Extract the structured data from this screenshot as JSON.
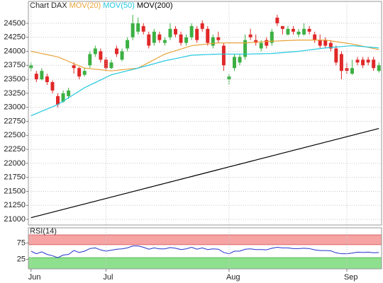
{
  "chart_data": [
    {
      "type": "candlestick",
      "title": "Chart DAX",
      "categories": [
        "Jun",
        null,
        null,
        null,
        null,
        null,
        null,
        null,
        null,
        null,
        null,
        null,
        null,
        null,
        "Jul",
        null,
        null,
        null,
        null,
        null,
        null,
        null,
        null,
        null,
        null,
        null,
        null,
        null,
        null,
        null,
        null,
        null,
        null,
        null,
        null,
        null,
        null,
        "Aug",
        null,
        null,
        null,
        null,
        null,
        null,
        null,
        null,
        null,
        null,
        null,
        null,
        null,
        null,
        null,
        null,
        null,
        null,
        null,
        null,
        null,
        "Sep",
        null,
        null,
        null,
        null,
        null,
        null
      ],
      "open": [
        23700,
        23600,
        23500,
        23550,
        23450,
        23200,
        23100,
        23200,
        23750,
        23700,
        23580,
        23750,
        23950,
        24000,
        23850,
        23700,
        24050,
        23850,
        24050,
        24250,
        24350,
        24450,
        24300,
        24150,
        24300,
        24150,
        24250,
        24400,
        24300,
        24150,
        24250,
        24400,
        24500,
        24400,
        24100,
        24250,
        24100,
        23500,
        23700,
        23800,
        23900,
        24300,
        24200,
        24050,
        24200,
        24150,
        24600,
        24450,
        24300,
        24400,
        24300,
        24300,
        24400,
        24300,
        24200,
        24200,
        24150,
        24050,
        23950,
        23700,
        23600,
        23850,
        23850,
        23850,
        23850,
        23650
      ],
      "high": [
        23800,
        23650,
        23700,
        23600,
        23480,
        23250,
        23300,
        23350,
        23800,
        23720,
        23700,
        24000,
        24100,
        24050,
        23900,
        23850,
        24100,
        24050,
        24250,
        24650,
        24600,
        24500,
        24350,
        24400,
        24350,
        24250,
        24500,
        24450,
        24350,
        24300,
        24500,
        24450,
        24550,
        24450,
        24300,
        24350,
        24150,
        23600,
        23950,
        23950,
        24300,
        24400,
        24300,
        24200,
        24250,
        24400,
        24650,
        24450,
        24450,
        24450,
        24400,
        24500,
        24450,
        24350,
        24300,
        24250,
        24200,
        24100,
        24000,
        23800,
        23850,
        23900,
        23900,
        23900,
        23900,
        23800
      ],
      "low": [
        23650,
        23450,
        23480,
        23400,
        23250,
        23000,
        23080,
        23150,
        23600,
        23500,
        23550,
        23700,
        23900,
        23800,
        23650,
        23680,
        23900,
        23820,
        24000,
        24200,
        24300,
        24300,
        24050,
        24100,
        24150,
        24100,
        24200,
        24250,
        24100,
        24100,
        24200,
        24150,
        24350,
        24100,
        24050,
        24150,
        23650,
        23400,
        23650,
        23750,
        23850,
        24200,
        24100,
        24000,
        24050,
        24100,
        24450,
        24300,
        24280,
        24300,
        24250,
        24280,
        24300,
        24150,
        24050,
        24050,
        24000,
        23750,
        23500,
        23600,
        23580,
        23750,
        23700,
        23750,
        23650,
        23620
      ],
      "close": [
        23750,
        23500,
        23650,
        23450,
        23300,
        23050,
        23250,
        23300,
        23700,
        23550,
        23650,
        23950,
        24050,
        23850,
        23700,
        23800,
        23950,
        24000,
        24200,
        24500,
        24500,
        24350,
        24100,
        24350,
        24200,
        24200,
        24400,
        24300,
        24150,
        24250,
        24450,
        24200,
        24400,
        24150,
        24250,
        24200,
        23750,
        23550,
        23900,
        23900,
        24200,
        24250,
        24150,
        24150,
        24100,
        24350,
        24500,
        24400,
        24400,
        24350,
        24350,
        24400,
        24350,
        24200,
        24100,
        24100,
        24050,
        23800,
        23650,
        23650,
        23700,
        23800,
        23750,
        23800,
        23700,
        23750
      ],
      "up_color": "#3cb043",
      "down_color": "#e02828",
      "series": [
        {
          "name": "MOV(20)",
          "color": "#e8a33a",
          "values": [
            24000,
            23980,
            23960,
            23940,
            23920,
            23900,
            23860,
            23820,
            23780,
            23740,
            23700,
            23690,
            23680,
            23670,
            23660,
            23650,
            23660,
            23670,
            23680,
            23690,
            23700,
            23750,
            23800,
            23850,
            23900,
            23950,
            23980,
            24010,
            24040,
            24070,
            24100,
            24110,
            24120,
            24130,
            24140,
            24150,
            24150,
            24150,
            24150,
            24150,
            24150,
            24156,
            24162,
            24168,
            24174,
            24180,
            24184,
            24188,
            24192,
            24196,
            24200,
            24200,
            24200,
            24200,
            24200,
            24200,
            24186,
            24172,
            24158,
            24144,
            24130,
            24110,
            24090,
            24070,
            24050,
            24030
          ]
        },
        {
          "name": "MOV(50)",
          "color": "#22c8e0",
          "values": [
            22850,
            22890,
            22930,
            22970,
            23010,
            23050,
            23110,
            23170,
            23230,
            23290,
            23350,
            23396,
            23442,
            23488,
            23534,
            23580,
            23604,
            23628,
            23652,
            23676,
            23700,
            23726,
            23752,
            23778,
            23804,
            23830,
            23850,
            23870,
            23890,
            23910,
            23930,
            23934,
            23938,
            23942,
            23946,
            23950,
            23950,
            23950,
            23950,
            23950,
            23950,
            23952,
            23954,
            23956,
            23958,
            23960,
            23968,
            23976,
            23984,
            23992,
            24000,
            24012,
            24024,
            24036,
            24048,
            24060,
            24068,
            24076,
            24084,
            24092,
            24100,
            24092,
            24084,
            24076,
            24068,
            24060
          ]
        },
        {
          "name": "MOV(200)",
          "color": "#000000",
          "values": [
            21030,
            21055,
            21079,
            21104,
            21128,
            21153,
            21177,
            21202,
            21226,
            21251,
            21275,
            21300,
            21324,
            21349,
            21373,
            21398,
            21422,
            21447,
            21471,
            21496,
            21520,
            21545,
            21569,
            21594,
            21618,
            21643,
            21667,
            21692,
            21716,
            21741,
            21765,
            21790,
            21814,
            21839,
            21863,
            21888,
            21912,
            21937,
            21961,
            21986,
            22010,
            22035,
            22059,
            22084,
            22108,
            22133,
            22157,
            22182,
            22206,
            22231,
            22255,
            22280,
            22304,
            22329,
            22353,
            22378,
            22402,
            22427,
            22451,
            22476,
            22500,
            22525,
            22549,
            22574,
            22598,
            22623
          ]
        }
      ],
      "ylim": [
        20900,
        24890
      ],
      "yticks": [
        21000,
        21250,
        21500,
        21750,
        22000,
        22250,
        22500,
        22750,
        23000,
        23250,
        23500,
        23750,
        24000,
        24250,
        24500
      ],
      "grid": true
    },
    {
      "type": "line",
      "title": "RSI(14)",
      "color": "#2233cc",
      "values": [
        50,
        42,
        48,
        40,
        36,
        30,
        38,
        40,
        52,
        46,
        50,
        58,
        60,
        54,
        50,
        53,
        56,
        57,
        60,
        66,
        66,
        62,
        56,
        60,
        57,
        57,
        61,
        59,
        55,
        57,
        62,
        56,
        60,
        55,
        57,
        56,
        46,
        42,
        50,
        50,
        56,
        57,
        55,
        55,
        54,
        59,
        62,
        60,
        60,
        58,
        58,
        59,
        58,
        54,
        52,
        52,
        51,
        45,
        42,
        42,
        44,
        47,
        46,
        47,
        45,
        46
      ],
      "ylim": [
        0,
        100
      ],
      "yticks": [
        25,
        75
      ],
      "overbought": 70,
      "oversold": 30,
      "overbought_color": "#f5a3a3",
      "oversold_color": "#8ee08e",
      "grid": true
    }
  ]
}
